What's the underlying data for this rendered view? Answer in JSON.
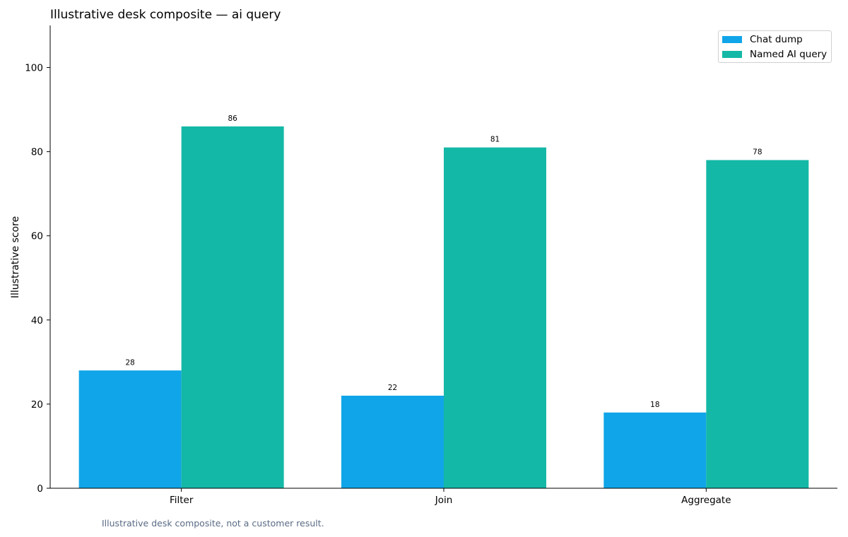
{
  "chart_data": {
    "type": "bar",
    "title": "Illustrative desk composite — ai query",
    "xlabel": "",
    "ylabel": "Illustrative score",
    "categories": [
      "Filter",
      "Join",
      "Aggregate"
    ],
    "series": [
      {
        "name": "Chat dump",
        "values": [
          28,
          22,
          18
        ],
        "color": "#10a5e8"
      },
      {
        "name": "Named AI query",
        "values": [
          86,
          81,
          78
        ],
        "color": "#14b8a6"
      }
    ],
    "ylim": [
      0,
      110
    ],
    "yticks": [
      0,
      20,
      40,
      60,
      80,
      100
    ],
    "grid": false,
    "legend": "top-right",
    "data_labels": true
  },
  "footnote": "Illustrative desk composite, not a customer result."
}
